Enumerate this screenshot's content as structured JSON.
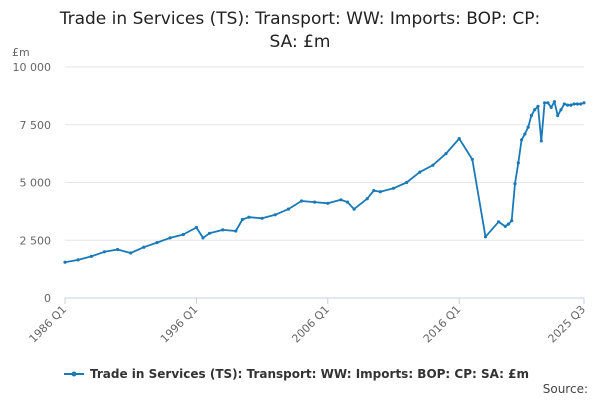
{
  "colors": {
    "series": "#1a7ab7",
    "grid": "#e6e6e6",
    "axis": "#c0d0e0"
  },
  "chart_data": {
    "type": "line",
    "title_line1": "Trade in Services (TS): Transport: WW: Imports: BOP: CP:",
    "title_line2": "SA: £m",
    "ylabel": "£m",
    "source": "Source:",
    "ylim": [
      0,
      10000
    ],
    "yticks": [
      {
        "value": 0,
        "label": "0"
      },
      {
        "value": 2500,
        "label": "2 500"
      },
      {
        "value": 5000,
        "label": "5 000"
      },
      {
        "value": 7500,
        "label": "7 500"
      },
      {
        "value": 10000,
        "label": "10 000"
      }
    ],
    "xticks": [
      "1986 Q1",
      "1996 Q1",
      "2006 Q1",
      "2016 Q1",
      "2025 Q3"
    ],
    "grid": true,
    "legend_position": "bottom",
    "series": [
      {
        "name": "Trade in Services (TS): Transport: WW: Imports: BOP: CP: SA: £m",
        "x": [
          "1986 Q1",
          "1987 Q1",
          "1988 Q1",
          "1989 Q1",
          "1990 Q1",
          "1991 Q1",
          "1992 Q1",
          "1993 Q1",
          "1994 Q1",
          "1995 Q1",
          "1996 Q1",
          "1996 Q3",
          "1997 Q1",
          "1998 Q1",
          "1999 Q1",
          "1999 Q3",
          "2000 Q1",
          "2001 Q1",
          "2002 Q1",
          "2003 Q1",
          "2004 Q1",
          "2005 Q1",
          "2006 Q1",
          "2007 Q1",
          "2007 Q3",
          "2008 Q1",
          "2009 Q1",
          "2009 Q3",
          "2010 Q1",
          "2011 Q1",
          "2012 Q1",
          "2013 Q1",
          "2014 Q1",
          "2015 Q1",
          "2016 Q1",
          "2017 Q1",
          "2018 Q1",
          "2019 Q1",
          "2019 Q3",
          "2019 Q4",
          "2020 Q1",
          "2020 Q2",
          "2020 Q3",
          "2020 Q4",
          "2021 Q1",
          "2021 Q2",
          "2021 Q3",
          "2021 Q4",
          "2022 Q1",
          "2022 Q2",
          "2022 Q3",
          "2022 Q4",
          "2023 Q1",
          "2023 Q2",
          "2023 Q3",
          "2023 Q4",
          "2024 Q1",
          "2024 Q2",
          "2024 Q3",
          "2024 Q4",
          "2025 Q1",
          "2025 Q2",
          "2025 Q3"
        ],
        "values": [
          1550,
          1650,
          1800,
          2000,
          2100,
          1950,
          2200,
          2400,
          2600,
          2750,
          3050,
          2600,
          2800,
          2950,
          2900,
          3400,
          3500,
          3450,
          3600,
          3850,
          4200,
          4150,
          4100,
          4250,
          4150,
          3850,
          4300,
          4650,
          4600,
          4750,
          5000,
          5450,
          5750,
          6250,
          6900,
          6000,
          2650,
          3300,
          3100,
          3200,
          3350,
          4950,
          5850,
          6850,
          7100,
          7400,
          7900,
          8150,
          8300,
          6800,
          8450,
          8450,
          8250,
          8500,
          7900,
          8150,
          8400,
          8350,
          8350,
          8400,
          8400,
          8400,
          8450
        ]
      }
    ]
  }
}
